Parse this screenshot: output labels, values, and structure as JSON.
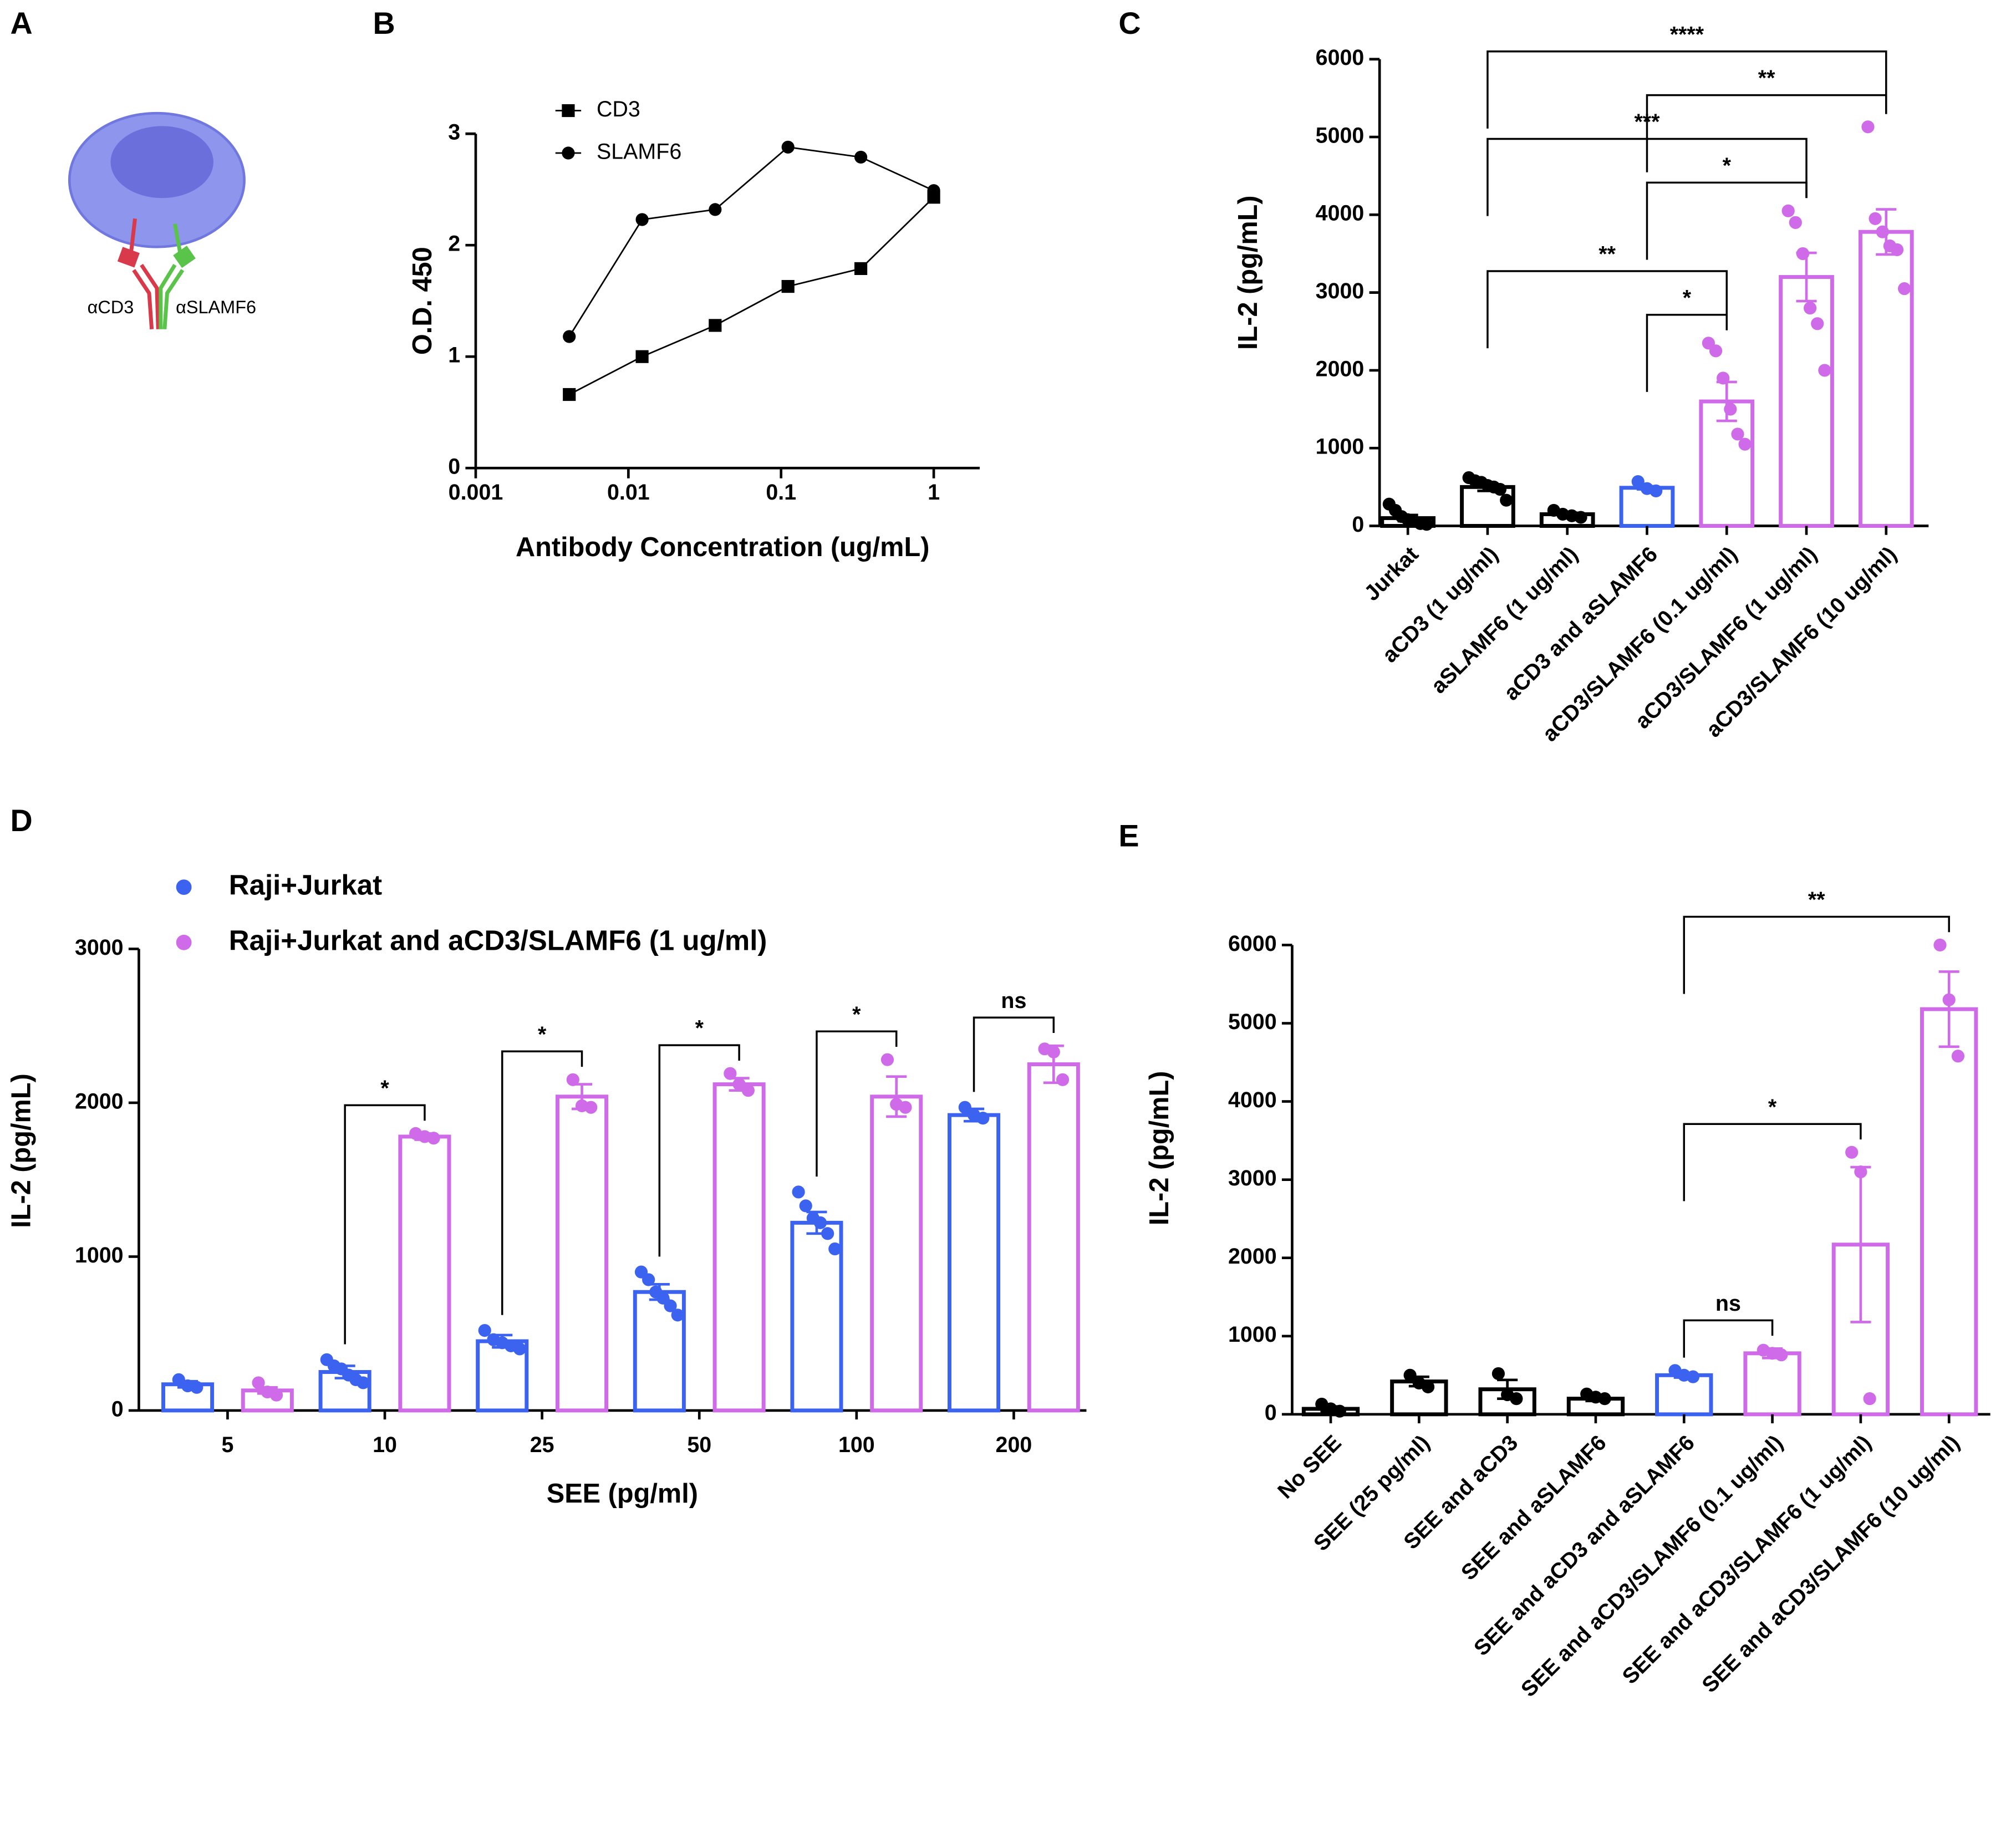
{
  "panel_a": {
    "label": "A",
    "texts": [
      "αCD3",
      "αSLAMF6"
    ]
  },
  "chart_data": [
    {
      "type": "line",
      "panel": "B",
      "y_label": "O.D. 450",
      "x_label": "Antibody Concentration (ug/mL)",
      "log_x": true,
      "x": [
        0.0041,
        0.0123,
        0.037,
        0.111,
        0.333,
        1
      ],
      "series": [
        {
          "name": "CD3",
          "color": "#000000",
          "marker": "square",
          "values": [
            0.66,
            1.0,
            1.28,
            1.63,
            1.79,
            2.43
          ]
        },
        {
          "name": "SLAMF6",
          "color": "#000000",
          "marker": "circle",
          "values": [
            1.18,
            2.23,
            2.32,
            2.88,
            2.79,
            2.49
          ]
        }
      ],
      "xlim": [
        0.001,
        2
      ],
      "xticks": [
        0.001,
        0.01,
        0.1,
        1
      ],
      "ylim": [
        0,
        3
      ],
      "yticks": [
        0,
        1,
        2,
        3
      ],
      "legend": "top-left"
    },
    {
      "type": "bar",
      "panel": "C",
      "y_label": "IL-2 (pg/mL)",
      "categories": [
        "Jurkat",
        "aCD3 (1 ug/ml)",
        "aSLAMF6 (1 ug/ml)",
        "aCD3 and aSLAMF6",
        "aCD3/SLAMF6 (0.1 ug/ml)",
        "aCD3/SLAMF6 (1 ug/ml)",
        "aCD3/SLAMF6 (10 ug/ml)"
      ],
      "colors": [
        "#000000",
        "#000000",
        "#000000",
        "#3b63f0",
        "#cf6be8",
        "#cf6be8",
        "#cf6be8"
      ],
      "values": [
        100,
        500,
        150,
        490,
        1600,
        3200,
        3780
      ],
      "errors": [
        40,
        50,
        20,
        20,
        250,
        310,
        290
      ],
      "points": [
        [
          280,
          200,
          120,
          80,
          60,
          30,
          20
        ],
        [
          620,
          580,
          560,
          520,
          500,
          470,
          330
        ],
        [
          200,
          150,
          130,
          110
        ],
        [
          570,
          480,
          450
        ],
        [
          2350,
          2250,
          1900,
          1500,
          1180,
          1050
        ],
        [
          4050,
          3900,
          3500,
          2800,
          2600,
          2000
        ],
        [
          5130,
          3950,
          3780,
          3600,
          3550,
          3050
        ]
      ],
      "annotations": [
        {
          "text": "*",
          "from": 3,
          "to": 4
        },
        {
          "text": "**",
          "from": 1,
          "to": 4
        },
        {
          "text": "*",
          "from": 3,
          "to": 5
        },
        {
          "text": "***",
          "from": 1,
          "to": 5
        },
        {
          "text": "**",
          "from": 3,
          "to": 6
        },
        {
          "text": "****",
          "from": 1,
          "to": 6
        }
      ],
      "ylim": [
        0,
        6000
      ],
      "yticks": [
        0,
        1000,
        2000,
        3000,
        4000,
        5000,
        6000
      ]
    },
    {
      "type": "grouped_bar",
      "panel": "D",
      "y_label": "IL-2 (pg/mL)",
      "x_label": "SEE (pg/ml)",
      "categories": [
        "5",
        "10",
        "25",
        "50",
        "100",
        "200"
      ],
      "series": [
        {
          "name": "Raji+Jurkat",
          "color": "#3b63f0",
          "values": [
            170,
            250,
            450,
            770,
            1220,
            1920
          ],
          "errors": [
            20,
            40,
            40,
            50,
            70,
            40
          ],
          "points": [
            [
              200,
              160,
              150
            ],
            [
              330,
              290,
              270,
              230,
              200,
              180
            ],
            [
              520,
              460,
              440,
              420,
              400
            ],
            [
              900,
              850,
              770,
              730,
              680,
              620
            ],
            [
              1420,
              1330,
              1250,
              1220,
              1150,
              1050
            ],
            [
              1970,
              1920,
              1900
            ]
          ]
        },
        {
          "name": "Raji+Jurkat and aCD3/SLAMF6 (1 ug/ml)",
          "color": "#cf6be8",
          "values": [
            130,
            1780,
            2040,
            2120,
            2040,
            2250
          ],
          "errors": [
            20,
            20,
            80,
            40,
            130,
            120
          ],
          "points": [
            [
              180,
              120,
              100
            ],
            [
              1800,
              1780,
              1770
            ],
            [
              2150,
              1980,
              1970
            ],
            [
              2190,
              2120,
              2080
            ],
            [
              2280,
              1990,
              1970
            ],
            [
              2350,
              2330,
              2150
            ]
          ]
        }
      ],
      "annotations": [
        null,
        "*",
        "*",
        "*",
        "*",
        "ns"
      ],
      "ylim": [
        0,
        3000
      ],
      "yticks": [
        0,
        1000,
        2000,
        3000
      ],
      "legend": "top-left"
    },
    {
      "type": "bar",
      "panel": "E",
      "y_label": "IL-2 (pg/mL)",
      "categories": [
        "No SEE",
        "SEE (25 pg/ml)",
        "SEE and aCD3",
        "SEE and aSLAMF6",
        "SEE and aCD3 and aSLAMF6",
        "SEE and aCD3/SLAMF6 (0.1 ug/ml)",
        "SEE and aCD3/SLAMF6 (1 ug/ml)",
        "SEE and aCD3/SLAMF6 (10 ug/ml)"
      ],
      "colors": [
        "#000000",
        "#000000",
        "#000000",
        "#000000",
        "#3b63f0",
        "#cf6be8",
        "#cf6be8",
        "#cf6be8"
      ],
      "values": [
        70,
        420,
        320,
        200,
        500,
        780,
        2170,
        5180
      ],
      "errors": [
        30,
        60,
        120,
        30,
        30,
        60,
        990,
        480
      ],
      "points": [
        [
          130,
          70,
          40
        ],
        [
          500,
          400,
          350
        ],
        [
          520,
          250,
          200
        ],
        [
          260,
          220,
          200
        ],
        [
          560,
          500,
          480
        ],
        [
          820,
          780,
          760
        ],
        [
          3350,
          3100,
          200
        ],
        [
          6000,
          5300,
          4580
        ]
      ],
      "annotations": [
        {
          "text": "ns",
          "from": 4,
          "to": 5
        },
        {
          "text": "*",
          "from": 4,
          "to": 6
        },
        {
          "text": "**",
          "from": 4,
          "to": 7
        }
      ],
      "ylim": [
        0,
        6000
      ],
      "yticks": [
        0,
        1000,
        2000,
        3000,
        4000,
        5000,
        6000
      ]
    }
  ]
}
